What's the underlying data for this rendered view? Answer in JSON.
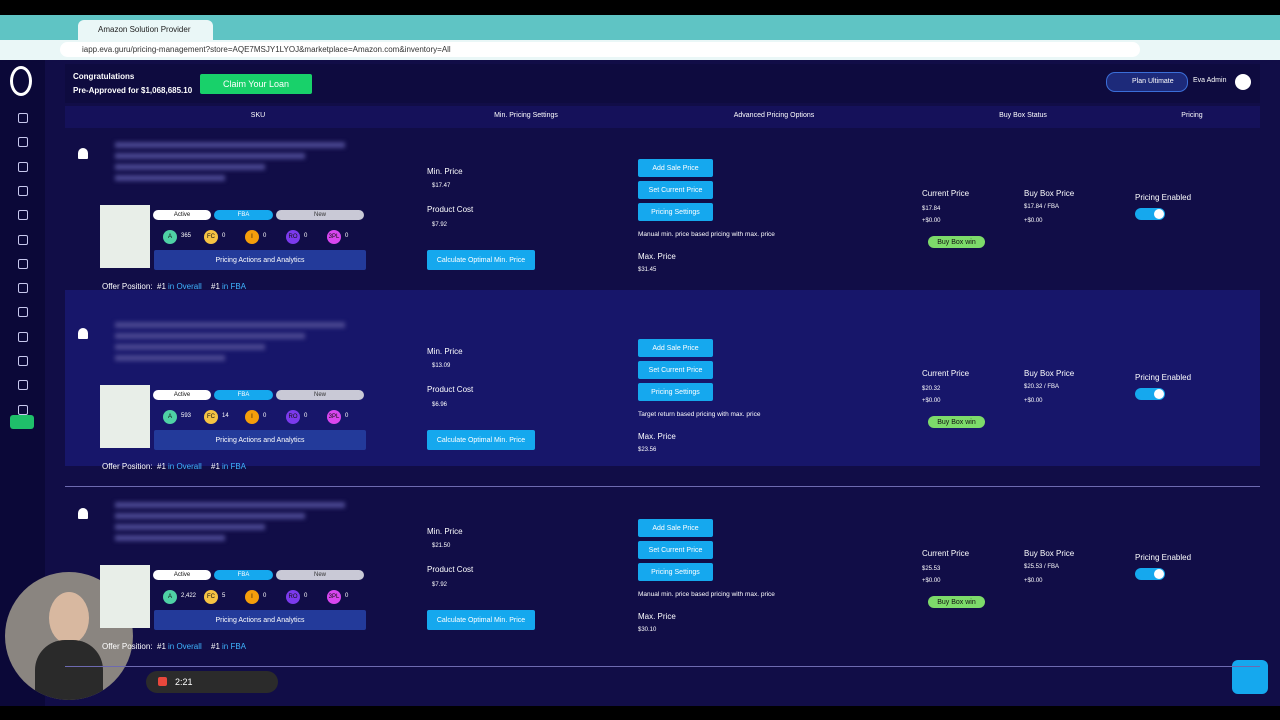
{
  "browser": {
    "tab_title": "Amazon Solution Provider",
    "url": "iapp.eva.guru/pricing-management?store=AQE7MSJY1LYOJ&marketplace=Amazon.com&inventory=All"
  },
  "header": {
    "congrats": "Congratulations",
    "preapproved": "Pre-Approved for $1,068,685.10",
    "claim_button": "Claim Your Loan",
    "plan": "Plan Ultimate",
    "user": "Eva Admin"
  },
  "table": {
    "columns": [
      "SKU",
      "Min. Pricing Settings",
      "Advanced Pricing Options",
      "Buy Box Status",
      "Pricing"
    ],
    "labels": {
      "min_price": "Min. Price",
      "product_cost": "Product Cost",
      "calculate": "Calculate Optimal Min. Price",
      "add_sale": "Add Sale Price",
      "set_current": "Set Current Price",
      "pricing_settings": "Pricing Settings",
      "max_price": "Max. Price",
      "current_price": "Current Price",
      "buy_box_price": "Buy Box Price",
      "pricing_enabled": "Pricing Enabled",
      "actions": "Pricing Actions and Analytics",
      "offer_position": "Offer Position:",
      "in_overall": "in Overall",
      "in_fba": "in FBA"
    },
    "rows": [
      {
        "status": [
          "Active",
          "FBA",
          "New"
        ],
        "counts": [
          {
            "label": "A",
            "value": "365"
          },
          {
            "label": "FC",
            "value": "0"
          },
          {
            "label": "I",
            "value": "0"
          },
          {
            "label": "RO",
            "value": "0"
          },
          {
            "label": "3PL",
            "value": "0"
          }
        ],
        "min_price": "$17.47",
        "product_cost": "$7.92",
        "strategy": "Manual min. price based pricing with max. price",
        "max_price": "$31.45",
        "current_price": "$17.84",
        "current_delta": "+$0.00",
        "buy_box_badge": "Buy Box win",
        "buy_box_price": "$17.84 / FBA",
        "buy_box_delta": "+$0.00",
        "offer_overall": "#1",
        "offer_fba": "#1"
      },
      {
        "status": [
          "Active",
          "FBA",
          "New"
        ],
        "counts": [
          {
            "label": "A",
            "value": "593"
          },
          {
            "label": "FC",
            "value": "14"
          },
          {
            "label": "I",
            "value": "0"
          },
          {
            "label": "RO",
            "value": "0"
          },
          {
            "label": "3PL",
            "value": "0"
          }
        ],
        "min_price": "$13.09",
        "product_cost": "$6.96",
        "strategy": "Target return based pricing with max. price",
        "max_price": "$23.56",
        "current_price": "$20.32",
        "current_delta": "+$0.00",
        "buy_box_badge": "Buy Box win",
        "buy_box_price": "$20.32 / FBA",
        "buy_box_delta": "+$0.00",
        "offer_overall": "#1",
        "offer_fba": "#1"
      },
      {
        "status": [
          "Active",
          "FBA",
          "New"
        ],
        "counts": [
          {
            "label": "A",
            "value": "2,422"
          },
          {
            "label": "FC",
            "value": "5"
          },
          {
            "label": "I",
            "value": "0"
          },
          {
            "label": "RO",
            "value": "0"
          },
          {
            "label": "3PL",
            "value": "0"
          }
        ],
        "min_price": "$21.50",
        "product_cost": "$7.92",
        "strategy": "Manual min. price based pricing with max. price",
        "max_price": "$30.10",
        "current_price": "$25.53",
        "current_delta": "+$0.00",
        "buy_box_badge": "Buy Box win",
        "buy_box_price": "$25.53 / FBA",
        "buy_box_delta": "+$0.00",
        "offer_overall": "#1",
        "offer_fba": "#1"
      }
    ]
  },
  "recorder": {
    "time": "2:21"
  }
}
